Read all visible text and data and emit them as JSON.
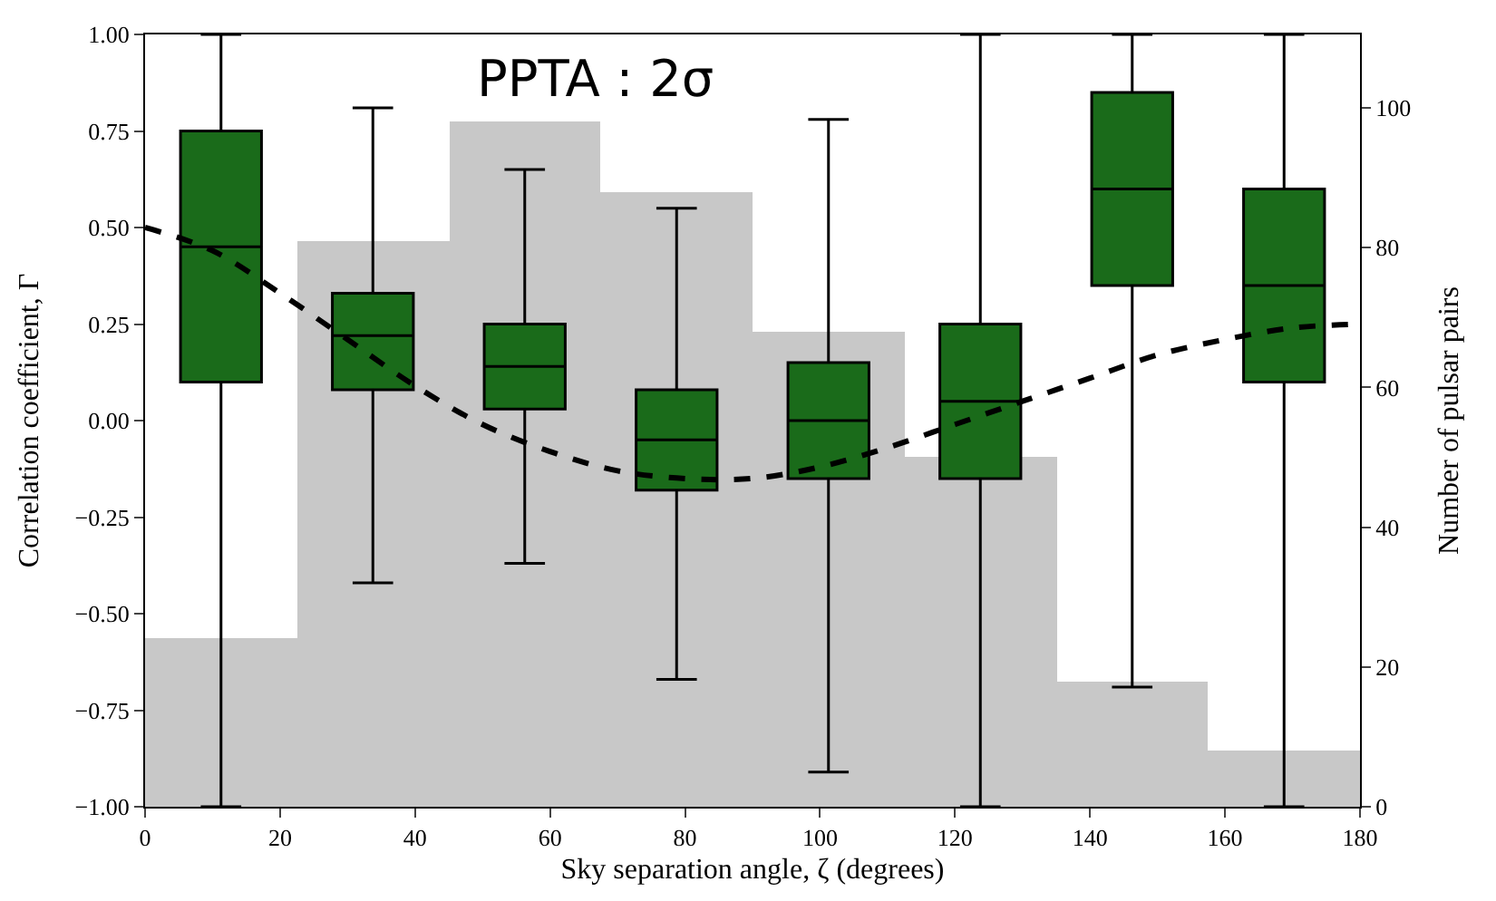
{
  "chart_data": {
    "type": "box",
    "xlabel": "Sky separation angle, ζ (degrees)",
    "ylabel": "Correlation coefficient, Γ",
    "y2label": "Number of pulsar pairs",
    "annotations": [
      "PPTA : 2σ"
    ],
    "xlim": [
      0,
      180
    ],
    "xticks": [
      0,
      20,
      40,
      60,
      80,
      100,
      120,
      140,
      160,
      180
    ],
    "ylim": [
      -1,
      1
    ],
    "yticks": [
      {
        "value": -1,
        "label": "−1.00"
      },
      {
        "value": -0.75,
        "label": "−0.75"
      },
      {
        "value": -0.5,
        "label": "−0.50"
      },
      {
        "value": -0.25,
        "label": "−0.25"
      },
      {
        "value": 0,
        "label": "0.00"
      },
      {
        "value": 0.25,
        "label": "0.25"
      },
      {
        "value": 0.5,
        "label": "0.50"
      },
      {
        "value": 0.75,
        "label": "0.75"
      },
      {
        "value": 1,
        "label": "1.00"
      }
    ],
    "y2lim": [
      0,
      110.5
    ],
    "y2ticks": [
      0,
      20,
      40,
      60,
      80,
      100
    ],
    "legend": false,
    "series": [
      {
        "type": "histogram",
        "axis": "y2",
        "color": "#c8c8c8",
        "bins": [
          0,
          22.5,
          45,
          67.5,
          90,
          112.5,
          135,
          157.5,
          180
        ],
        "values": [
          24,
          81,
          98,
          88,
          68,
          50,
          18,
          8
        ]
      },
      {
        "color": "#1a6b1a",
        "x": [
          11.25,
          33.75,
          56.25,
          78.75,
          101.25,
          123.75,
          146.25,
          168.75
        ],
        "boxes": [
          {
            "low": -1,
            "q1": 0.1,
            "median": 0.45,
            "q3": 0.75,
            "high": 1
          },
          {
            "low": -0.42,
            "q1": 0.08,
            "median": 0.22,
            "q3": 0.33,
            "high": 0.81
          },
          {
            "low": -0.37,
            "q1": 0.03,
            "median": 0.14,
            "q3": 0.25,
            "high": 0.65
          },
          {
            "low": -0.67,
            "q1": -0.18,
            "median": -0.05,
            "q3": 0.08,
            "high": 0.55
          },
          {
            "low": -0.91,
            "q1": -0.15,
            "median": 0,
            "q3": 0.15,
            "high": 0.78
          },
          {
            "low": -1,
            "q1": -0.15,
            "median": 0.05,
            "q3": 0.25,
            "high": 1
          },
          {
            "low": -0.69,
            "q1": 0.35,
            "median": 0.6,
            "q3": 0.85,
            "high": 1
          },
          {
            "low": -1,
            "q1": 0.1,
            "median": 0.35,
            "q3": 0.6,
            "high": 1
          }
        ]
      },
      {
        "type": "line",
        "color": "#000000",
        "line_style": "dashed",
        "marker": "none",
        "x": [
          0,
          10,
          20,
          30,
          40,
          50,
          60,
          70,
          80,
          90,
          100,
          110,
          120,
          130,
          140,
          150,
          160,
          170,
          180
        ],
        "values": [
          0.5,
          0.44,
          0.33,
          0.21,
          0.09,
          -0.01,
          -0.08,
          -0.13,
          -0.15,
          -0.15,
          -0.12,
          -0.07,
          -0.01,
          0.05,
          0.11,
          0.17,
          0.21,
          0.24,
          0.25
        ]
      }
    ]
  }
}
